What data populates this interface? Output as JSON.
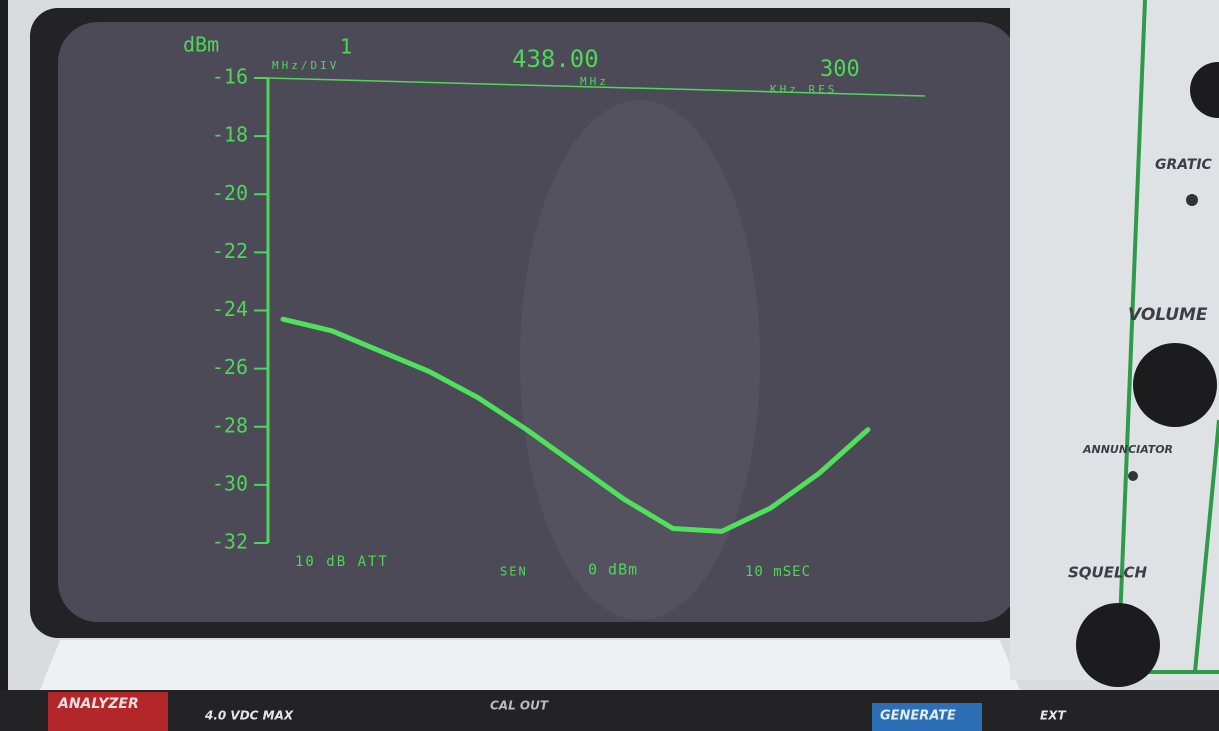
{
  "chart_data": {
    "type": "line",
    "y_label": "dBm",
    "scale": "1",
    "scale_unit": "MHz/DIV",
    "center": "438.00",
    "center_unit": "MHz",
    "resolution": "300",
    "resolution_unit": "KHz RES",
    "attenuation": "10 dB ATT",
    "sensitivity": "SEN",
    "reference": "0 dBm",
    "sweep": "10 mSEC",
    "categories": [
      null,
      null,
      null,
      null,
      null,
      null,
      null,
      null,
      null,
      null,
      null,
      null,
      null
    ],
    "values": [
      -24.3,
      -24.7,
      -25.4,
      -26.1,
      -27.0,
      -28.1,
      -29.3,
      -30.5,
      -31.5,
      -31.6,
      -30.8,
      -29.6,
      -28.1
    ],
    "color": "#4fe05c",
    "ylim": [
      -32,
      -16
    ],
    "yticks": [
      -16,
      -18,
      -20,
      -22,
      -24,
      -26,
      -28,
      -30,
      -32
    ]
  },
  "panel": {
    "graticule": "GRATIC",
    "volume": "VOLUME",
    "annunciator": "ANNUNCIATOR",
    "squelch": "SQUELCH",
    "analyzer": "ANALYZER",
    "voltage": "4.0 VDC MAX",
    "cal_out": "CAL OUT",
    "generate": "GENERATE",
    "ext": "EXT"
  }
}
